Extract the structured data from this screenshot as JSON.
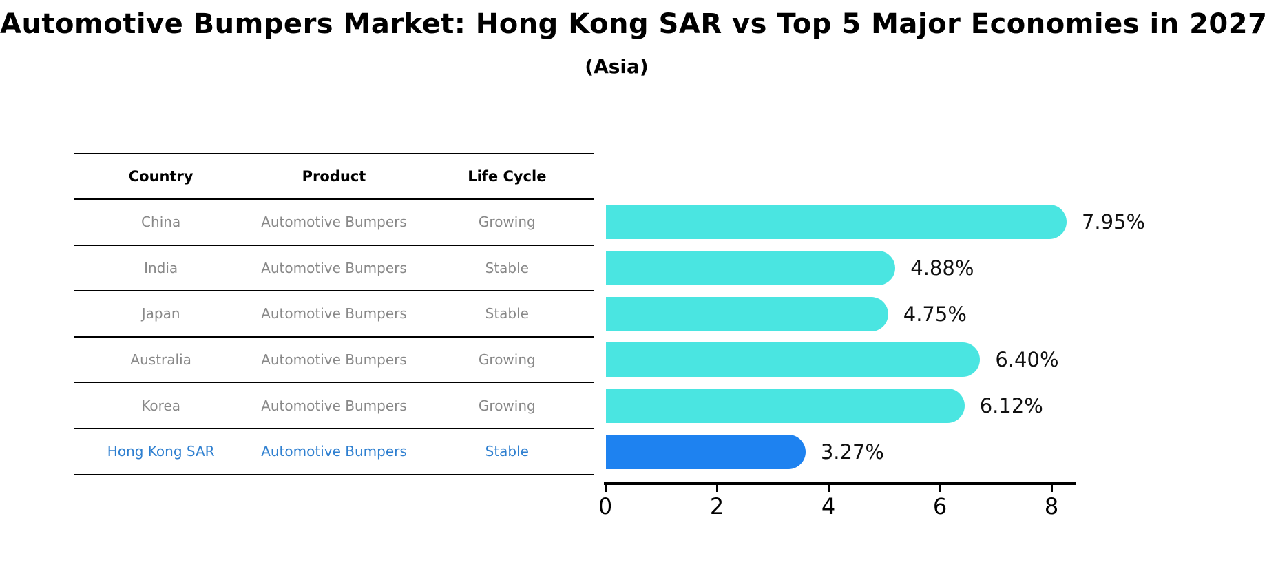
{
  "chart_data": {
    "type": "bar",
    "orientation": "horizontal",
    "title": "Automotive Bumpers Market: Hong Kong SAR vs Top 5 Major Economies in 2027",
    "subtitle": "(Asia)",
    "categories": [
      "China",
      "India",
      "Japan",
      "Australia",
      "Korea",
      "Hong Kong SAR"
    ],
    "values": [
      7.95,
      4.88,
      4.75,
      6.4,
      6.12,
      3.27
    ],
    "value_labels": [
      "7.95%",
      "4.88%",
      "4.75%",
      "6.40%",
      "6.12%",
      "3.27%"
    ],
    "highlight_index": 5,
    "x_ticks": [
      0,
      2,
      4,
      6,
      8
    ],
    "x_tick_labels": [
      "0",
      "2",
      "4",
      "6",
      "8"
    ],
    "xlim": [
      0,
      8.4
    ],
    "grid": false,
    "legend": false,
    "value_label_position": "right-of-bar",
    "bar_color": "#4AE5E1",
    "highlight_bar_color": "#1E82F0",
    "highlight_bar_style": "dotted-edge"
  },
  "table": {
    "headers": [
      "Country",
      "Product",
      "Life Cycle"
    ],
    "rows": [
      {
        "country": "China",
        "product": "Automotive Bumpers",
        "life_cycle": "Growing"
      },
      {
        "country": "India",
        "product": "Automotive Bumpers",
        "life_cycle": "Stable"
      },
      {
        "country": "Japan",
        "product": "Automotive Bumpers",
        "life_cycle": "Stable"
      },
      {
        "country": "Australia",
        "product": "Automotive Bumpers",
        "life_cycle": "Growing"
      },
      {
        "country": "Korea",
        "product": "Automotive Bumpers",
        "life_cycle": "Growing"
      },
      {
        "country": "Hong Kong SAR",
        "product": "Automotive Bumpers",
        "life_cycle": "Stable"
      }
    ],
    "highlight_row_index": 5
  },
  "colors": {
    "background": "#FFFFFF",
    "table_text": "#888888",
    "header_text": "#000000",
    "highlight_text": "#2E7FD0",
    "axis": "#000000"
  }
}
